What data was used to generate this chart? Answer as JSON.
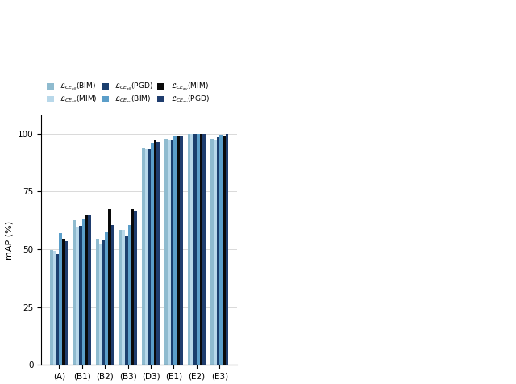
{
  "categories": [
    "(A)",
    "(B1)",
    "(B2)",
    "(B3)",
    "(D3)",
    "(E1)",
    "(E2)",
    "(E3)"
  ],
  "series": [
    {
      "label": "$\\mathcal{L}_{CE_{all}}$(BIM)",
      "color": "#8FBBCF",
      "values": [
        49.53,
        62.7,
        54.66,
        58.29,
        93.86,
        97.85,
        99.99,
        97.68
      ]
    },
    {
      "label": "$\\mathcal{L}_{CE_{all}}$(MIM)",
      "color": "#B8D8EA",
      "values": [
        49.3,
        59.26,
        52.18,
        58.3,
        93.34,
        97.6,
        99.98,
        97.47
      ]
    },
    {
      "label": "$\\mathcal{L}_{CE_{all}}$(PGD)",
      "color": "#1B3F6E",
      "values": [
        47.79,
        60.01,
        54.23,
        56.06,
        93.15,
        97.47,
        99.97,
        98.67
      ]
    },
    {
      "label": "$\\mathcal{L}_{CE_{av}}$(BIM)",
      "color": "#5B9EC9",
      "values": [
        57.0,
        63.0,
        57.5,
        60.5,
        96.0,
        99.0,
        99.99,
        99.5
      ]
    },
    {
      "label": "$\\mathcal{L}_{CE_{av}}$(MIM)",
      "color": "#0A0A0A",
      "values": [
        54.5,
        64.5,
        67.5,
        67.5,
        97.0,
        99.0,
        100.0,
        99.0
      ]
    },
    {
      "label": "$\\mathcal{L}_{CE_{av}}$(PGD)",
      "color": "#1F3D6E",
      "values": [
        53.5,
        64.5,
        60.5,
        66.5,
        96.5,
        99.0,
        99.99,
        100.0
      ]
    }
  ],
  "legend_row1": [
    "$\\mathcal{L}_{CE_{all}}$(BIM)",
    "$\\mathcal{L}_{CE_{all}}$(MIM)",
    "$\\mathcal{L}_{CE_{all}}$(PGD)"
  ],
  "legend_row2": [
    "$\\mathcal{L}_{CE_{av}}$(BIM)",
    "$\\mathcal{L}_{CE_{av}}$(MIM)",
    "$\\mathcal{L}_{CE_{av}}$(PGD)"
  ],
  "ylabel": "mAP (%)",
  "yticks": [
    0,
    25,
    50,
    75,
    100
  ],
  "ylim": [
    0,
    108
  ],
  "total_figsize": [
    6.4,
    4.76
  ],
  "dpi": 100,
  "bar_width": 0.13
}
